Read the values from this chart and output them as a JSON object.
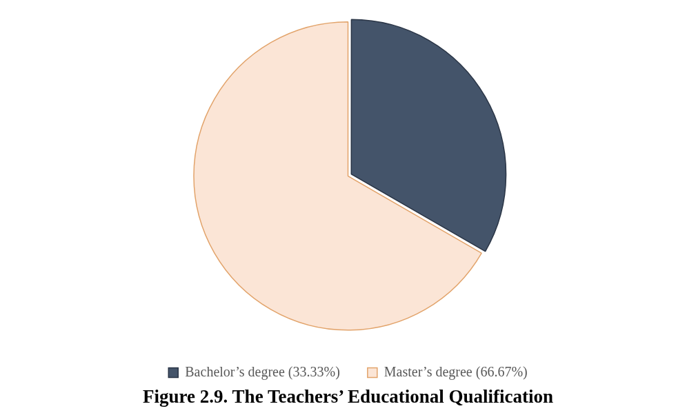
{
  "chart_data": {
    "type": "pie",
    "title": "Figure 2.9. The Teachers’ Educational Qualification",
    "categories": [
      "Bachelor’s degree (33.33%)",
      "Master’s degree (66.67%)"
    ],
    "values": [
      33.33,
      66.67
    ],
    "colors": [
      "#44546a",
      "#fbe5d6"
    ],
    "legend": "bottom"
  }
}
